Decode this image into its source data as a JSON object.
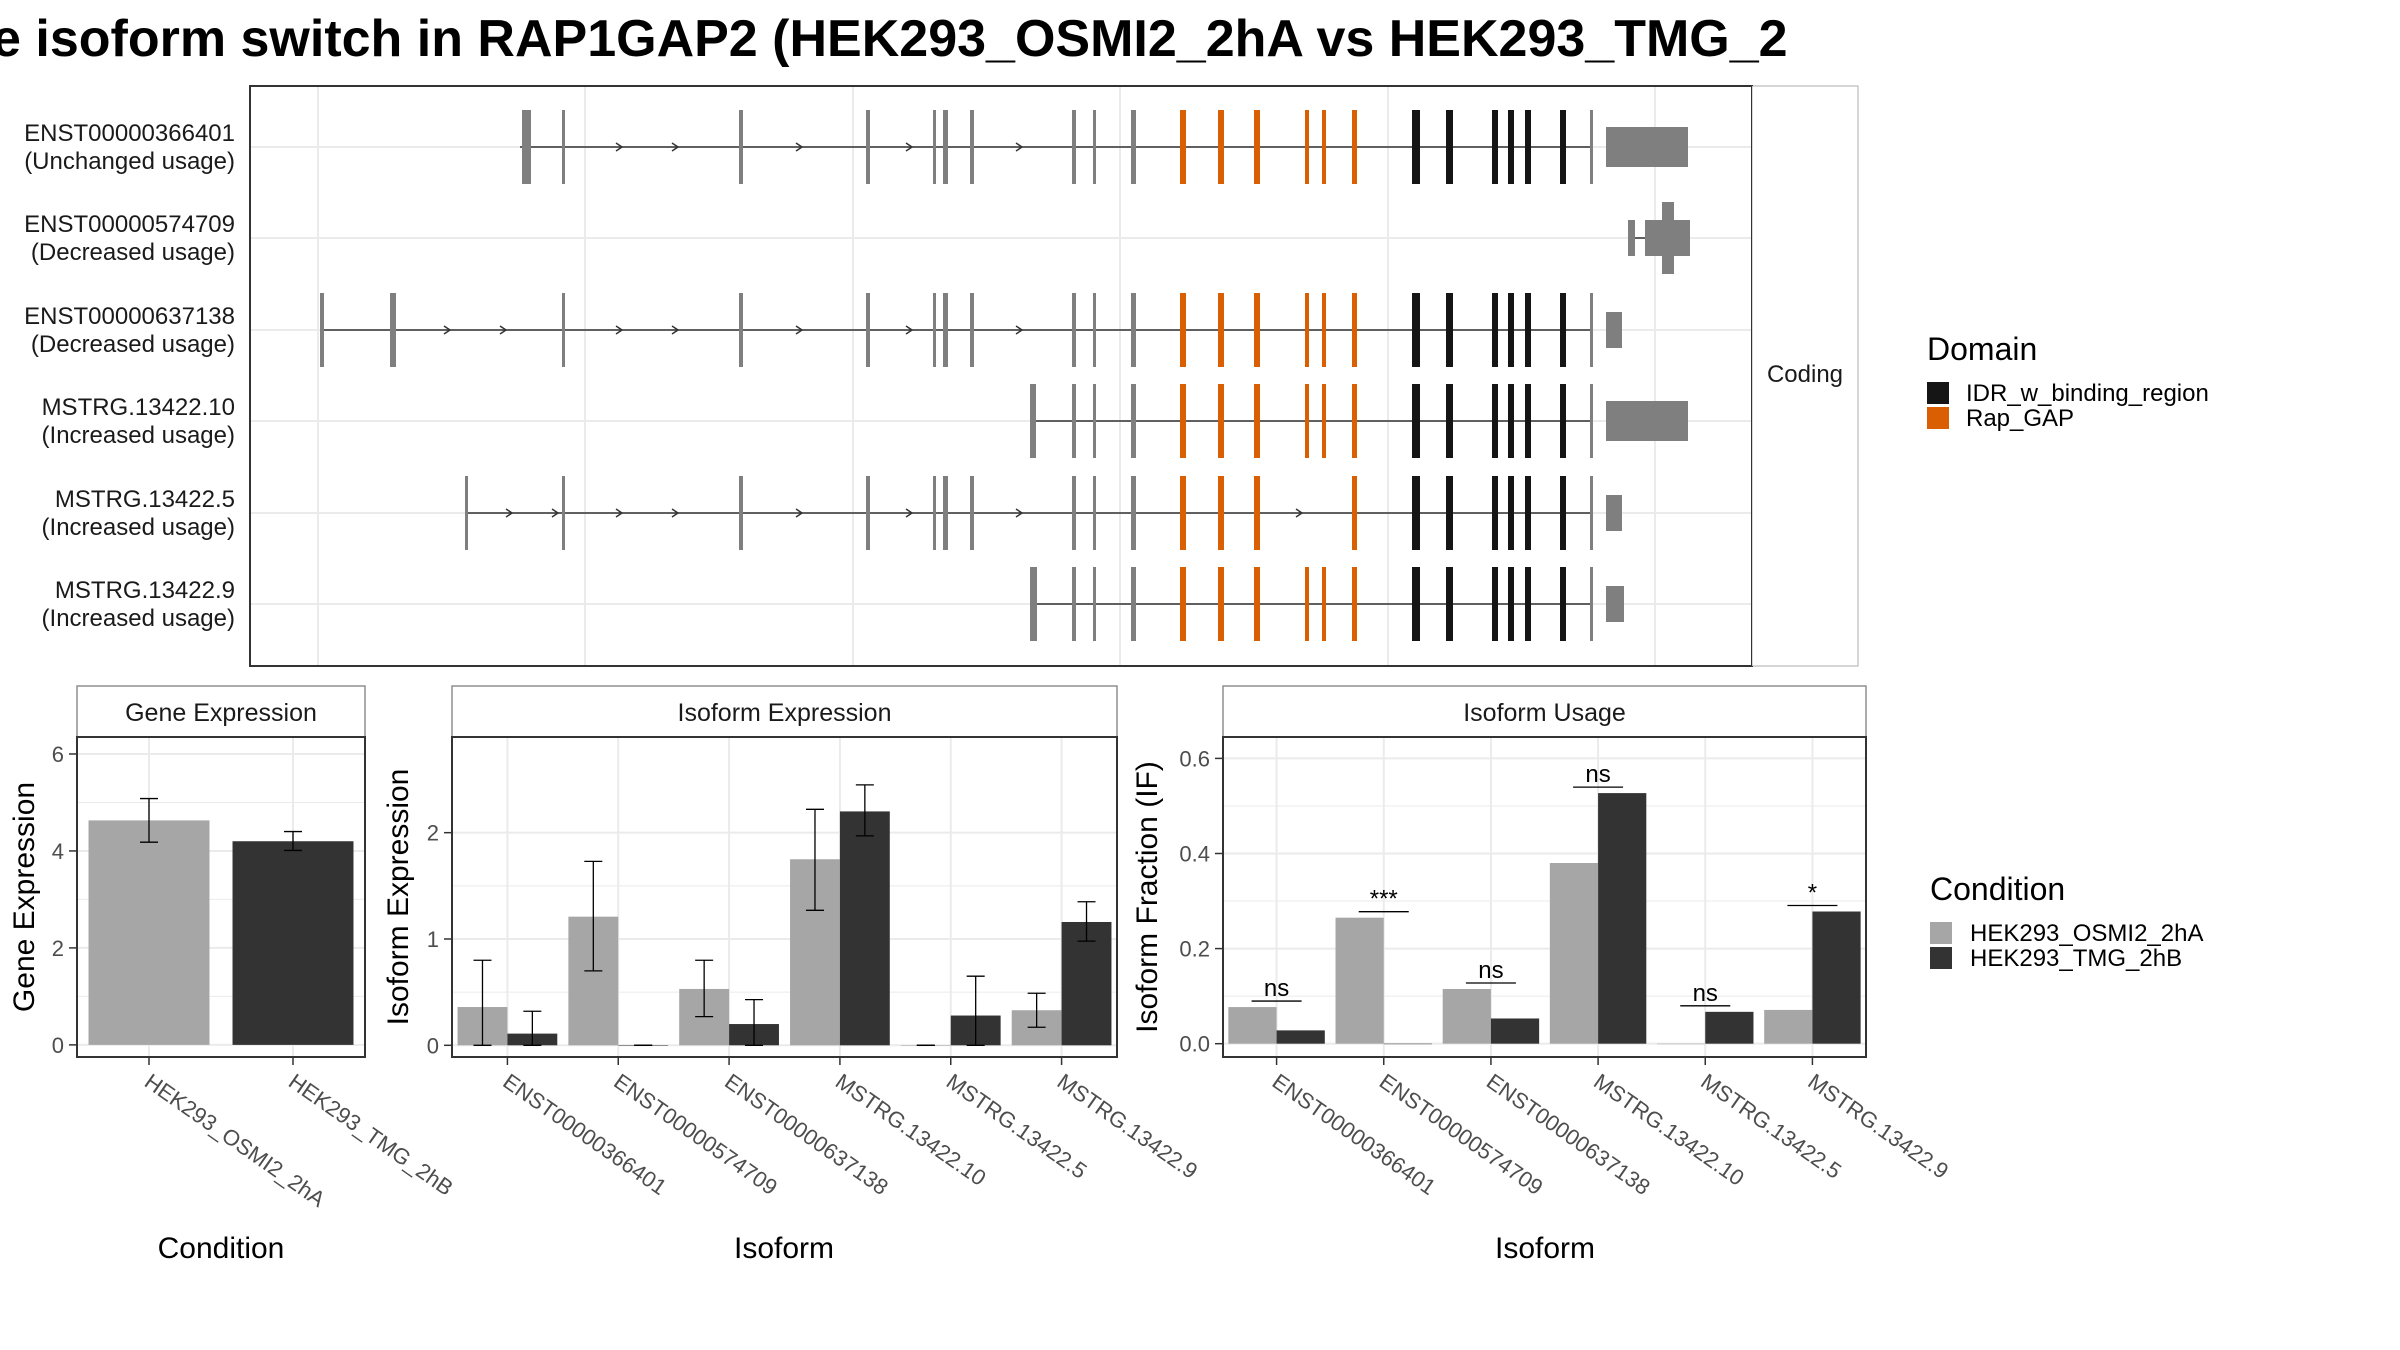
{
  "title": "e isoform switch in RAP1GAP2 (HEK293_OSMI2_2hA vs HEK293_TMG_2",
  "colors": {
    "exon": "#7f7f7f",
    "idr": "#151515",
    "rapgap": "#d95f02",
    "cond1": "#a6a6a6",
    "cond2": "#333333",
    "grid": "#ebebeb",
    "frame": "#333333",
    "strip_bg": "#ffffff"
  },
  "chart_data": [
    {
      "type": "gene_structure",
      "facet_label": "Coding",
      "isoforms": [
        {
          "id": "ENST00000366401",
          "usage": "(Unchanged usage)"
        },
        {
          "id": "ENST00000574709",
          "usage": "(Decreased usage)"
        },
        {
          "id": "ENST00000637138",
          "usage": "(Decreased usage)"
        },
        {
          "id": "MSTRG.13422.10",
          "usage": "(Increased usage)"
        },
        {
          "id": "MSTRG.13422.5",
          "usage": "(Increased usage)"
        },
        {
          "id": "MSTRG.13422.9",
          "usage": "(Increased usage)"
        }
      ],
      "legend": {
        "title": "Domain",
        "entries": [
          {
            "name": "IDR_w_binding_region",
            "color": "#151515"
          },
          {
            "name": "Rap_GAP",
            "color": "#d95f02"
          }
        ]
      }
    },
    {
      "type": "bar",
      "facet_label": "Gene Expression",
      "xlabel": "Condition",
      "ylabel": "Gene Expression",
      "ylim": [
        -0.25,
        6.35
      ],
      "yticks": [
        0,
        2,
        4,
        6
      ],
      "categories": [
        "HEK293_OSMI2_2hA",
        "HEK293_TMG_2hB"
      ],
      "series": [
        {
          "name": "HEK293_OSMI2_2hA",
          "values": [
            4.63,
            null
          ],
          "err": [
            [
              4.18,
              5.08
            ],
            null
          ]
        },
        {
          "name": "HEK293_TMG_2hB",
          "values": [
            null,
            4.2
          ],
          "err": [
            null,
            [
              4.01,
              4.4
            ]
          ]
        }
      ]
    },
    {
      "type": "bar",
      "facet_label": "Isoform Expression",
      "xlabel": "Isoform",
      "ylabel": "Isoform Expression",
      "ylim": [
        -0.11,
        2.9
      ],
      "yticks": [
        0,
        1,
        2
      ],
      "categories": [
        "ENST00000366401",
        "ENST00000574709",
        "ENST00000637138",
        "MSTRG.13422.10",
        "MSTRG.13422.5",
        "MSTRG.13422.9"
      ],
      "series": [
        {
          "name": "HEK293_OSMI2_2hA",
          "values": [
            0.36,
            1.21,
            0.53,
            1.75,
            0,
            0.33
          ],
          "err": [
            [
              0,
              0.8
            ],
            [
              0.7,
              1.73
            ],
            [
              0.27,
              0.8
            ],
            [
              1.27,
              2.22
            ],
            [
              0,
              0
            ],
            [
              0.17,
              0.49
            ]
          ]
        },
        {
          "name": "HEK293_TMG_2hB",
          "values": [
            0.11,
            0,
            0.2,
            2.2,
            0.28,
            1.16
          ],
          "err": [
            [
              0,
              0.32
            ],
            [
              0,
              0
            ],
            [
              0,
              0.43
            ],
            [
              1.97,
              2.45
            ],
            [
              0,
              0.65
            ],
            [
              0.98,
              1.35
            ]
          ]
        }
      ]
    },
    {
      "type": "bar",
      "facet_label": "Isoform Usage",
      "xlabel": "Isoform",
      "ylabel": "Isoform Fraction (IF)",
      "ylim": [
        -0.028,
        0.645
      ],
      "yticks": [
        0.0,
        0.2,
        0.4,
        0.6
      ],
      "ytick_labels": [
        "0.0",
        "0.2",
        "0.4",
        "0.6"
      ],
      "categories": [
        "ENST00000366401",
        "ENST00000574709",
        "ENST00000637138",
        "MSTRG.13422.10",
        "MSTRG.13422.5",
        "MSTRG.13422.9"
      ],
      "series": [
        {
          "name": "HEK293_OSMI2_2hA",
          "values": [
            0.077,
            0.265,
            0.115,
            0.38,
            0,
            0.071
          ]
        },
        {
          "name": "HEK293_TMG_2hB",
          "values": [
            0.028,
            0,
            0.053,
            0.527,
            0.067,
            0.278
          ]
        }
      ],
      "significance": [
        "ns",
        "***",
        "ns",
        "ns",
        "ns",
        "*"
      ],
      "legend": {
        "title": "Condition",
        "entries": [
          {
            "name": "HEK293_OSMI2_2hA",
            "color": "#a6a6a6"
          },
          {
            "name": "HEK293_TMG_2hB",
            "color": "#333333"
          }
        ]
      }
    }
  ]
}
